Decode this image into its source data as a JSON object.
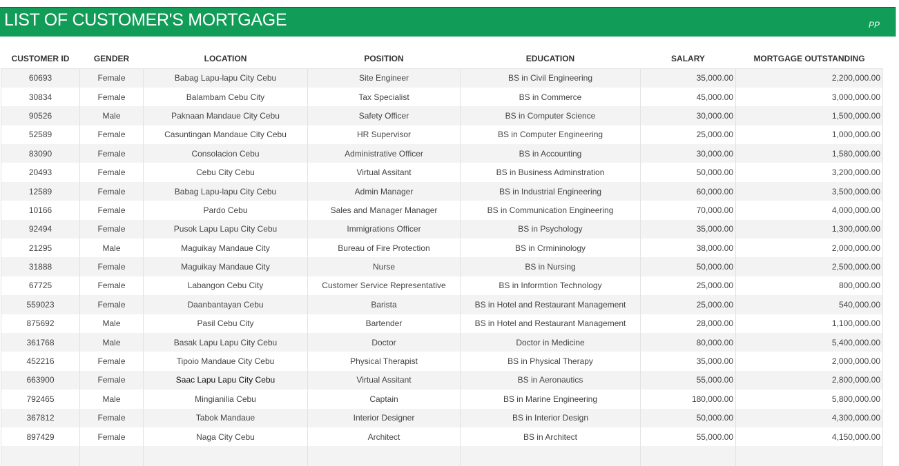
{
  "header": {
    "title": "LIST OF CUSTOMER'S MORTGAGE",
    "initials": "PP",
    "color": "#119d58"
  },
  "table": {
    "columns": [
      "CUSTOMER ID",
      "GENDER",
      "LOCATION",
      "POSITION",
      "EDUCATION",
      "SALARY",
      "MORTGAGE OUTSTANDING"
    ],
    "rows": [
      [
        "60693",
        "Female",
        "Babag Lapu-lapu City Cebu",
        "Site Engineer",
        "BS in Civil Engineering",
        "35,000.00",
        "2,200,000.00"
      ],
      [
        "30834",
        "Female",
        "Balambam Cebu City",
        "Tax Specialist",
        "BS in Commerce",
        "45,000.00",
        "3,000,000.00"
      ],
      [
        "90526",
        "Male",
        "Paknaan Mandaue City Cebu",
        "Safety Officer",
        "BS in Computer Science",
        "30,000.00",
        "1,500,000.00"
      ],
      [
        "52589",
        "Female",
        "Casuntingan Mandaue City Cebu",
        "HR Supervisor",
        "BS in Computer Engineering",
        "25,000.00",
        "1,000,000.00"
      ],
      [
        "83090",
        "Female",
        "Consolacion Cebu",
        "Administrative Officer",
        "BS in Accounting",
        "30,000.00",
        "1,580,000.00"
      ],
      [
        "20493",
        "Female",
        "Cebu City Cebu",
        "Virtual Assitant",
        "BS in Business Adminstration",
        "50,000.00",
        "3,200,000.00"
      ],
      [
        "12589",
        "Female",
        "Babag Lapu-lapu City Cebu",
        "Admin Manager",
        "BS in Industrial Engineering",
        "60,000.00",
        "3,500,000.00"
      ],
      [
        "10166",
        "Female",
        "Pardo Cebu",
        "Sales and Manager Manager",
        "BS in Communication Engineering",
        "70,000.00",
        "4,000,000.00"
      ],
      [
        "92494",
        "Female",
        "Pusok Lapu Lapu City Cebu",
        "Immigrations Officer",
        "BS in Psychology",
        "35,000.00",
        "1,300,000.00"
      ],
      [
        "21295",
        "Male",
        "Maguikay Mandaue City",
        "Bureau of Fire Protection",
        "BS in Crmininology",
        "38,000.00",
        "2,000,000.00"
      ],
      [
        "31888",
        "Female",
        "Maguikay Mandaue City",
        "Nurse",
        "BS in Nursing",
        "50,000.00",
        "2,500,000.00"
      ],
      [
        "67725",
        "Female",
        "Labangon Cebu City",
        "Customer Service Representative",
        "BS in Informtion Technology",
        "25,000.00",
        "800,000.00"
      ],
      [
        "559023",
        "Female",
        "Daanbantayan Cebu",
        "Barista",
        "BS in Hotel and Restaurant Management",
        "25,000.00",
        "540,000.00"
      ],
      [
        "875692",
        "Male",
        "Pasil Cebu City",
        "Bartender",
        "BS in Hotel and Restaurant Management",
        "28,000.00",
        "1,100,000.00"
      ],
      [
        "361768",
        "Male",
        "Basak Lapu Lapu City Cebu",
        "Doctor",
        "Doctor in Medicine",
        "80,000.00",
        "5,400,000.00"
      ],
      [
        "452216",
        "Female",
        "Tipoio Mandaue City Cebu",
        "Physical Therapist",
        "BS in Physical Therapy",
        "35,000.00",
        "2,000,000.00"
      ],
      [
        "663900",
        "Female",
        "Saac Lapu Lapu City Cebu",
        "Virtual Assitant",
        "BS in Aeronautics",
        "55,000.00",
        "2,800,000.00"
      ],
      [
        "792465",
        "Male",
        "Mingianilia Cebu",
        "Captain",
        "BS in Marine Engineering",
        "180,000.00",
        "5,800,000.00"
      ],
      [
        "367812",
        "Female",
        "Tabok Mandaue",
        "Interior Designer",
        "BS in Interior Design",
        "50,000.00",
        "4,300,000.00"
      ],
      [
        "897429",
        "Female",
        "Naga City Cebu",
        "Architect",
        "BS in Architect",
        "55,000.00",
        "4,150,000.00"
      ]
    ]
  }
}
